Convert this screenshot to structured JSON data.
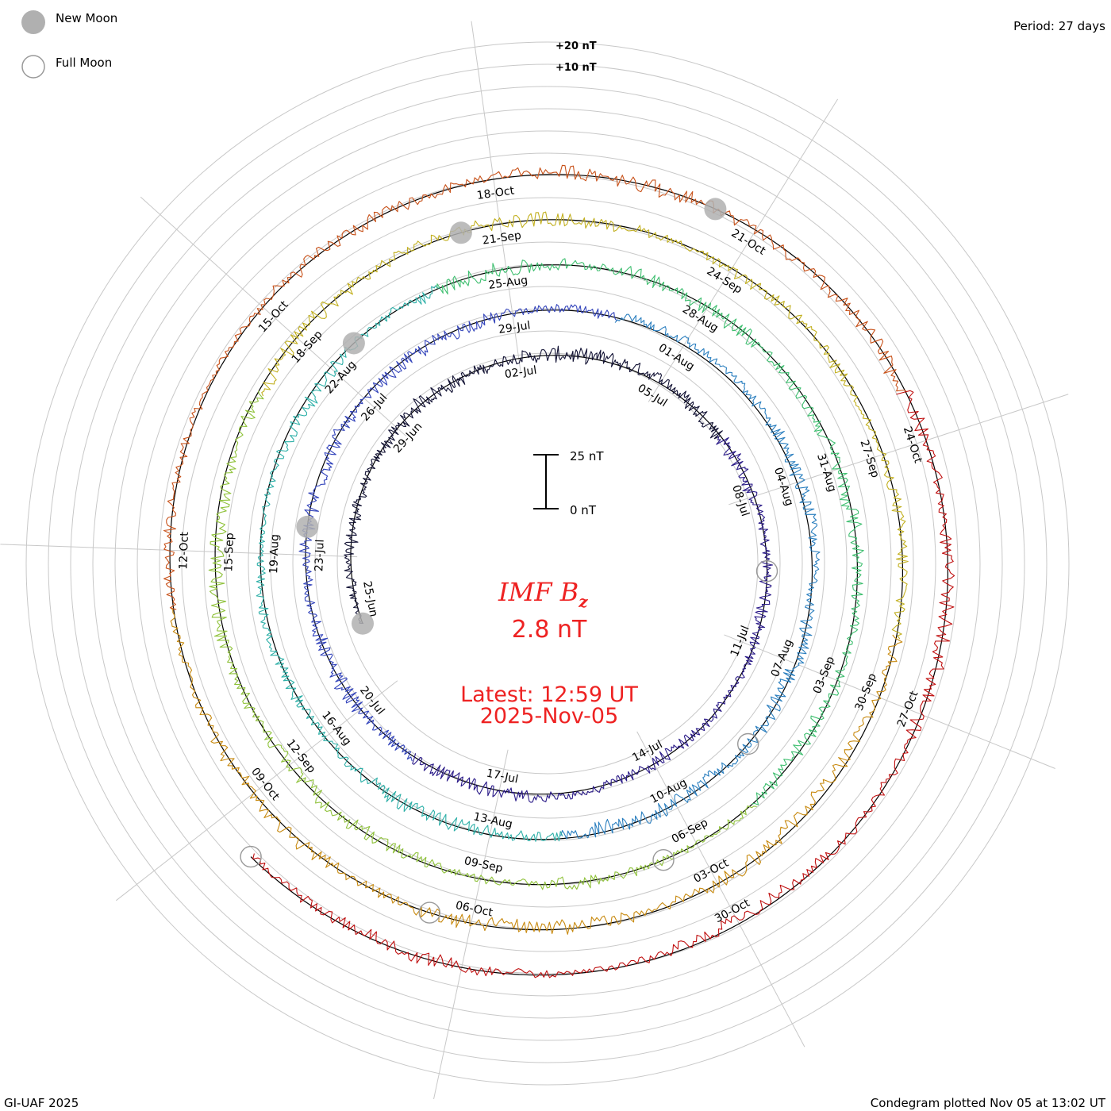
{
  "legend": {
    "new_moon": "New Moon",
    "full_moon": "Full Moon",
    "new_moon_color": "#b0b0b0",
    "full_moon_color": "#999999"
  },
  "period_label": "Period: 27 days",
  "footer_left": "GI-UAF 2025",
  "footer_right": "Condegram plotted Nov 05 at 13:02 UT",
  "scale_bar": {
    "top_label": "25 nT",
    "bottom_label": "0 nT"
  },
  "ring_labels": {
    "plus20": "+20 nT",
    "plus10": "+10 nT"
  },
  "center": {
    "title_main": "IMF B",
    "title_sub": "z",
    "value": "2.8 nT",
    "latest_line1": "Latest: 12:59 UT",
    "latest_line2": "2025-Nov-05"
  },
  "chart_data": {
    "type": "line",
    "title": "IMF Bz",
    "layout": "spiral condegram",
    "period_days": 27,
    "start_date": "2025-06-25",
    "end_date": "2025-11-05",
    "unit": "nT",
    "series_colors": [
      "#111133",
      "#2a1a88",
      "#3344bb",
      "#2b7fbf",
      "#2eb0a8",
      "#3fbf70",
      "#8fc23a",
      "#c2b020",
      "#c88a10",
      "#c8521a",
      "#c01010"
    ],
    "date_labels": [
      "25-Jun",
      "29-Jun",
      "02-Jul",
      "05-Jul",
      "08-Jul",
      "11-Jul",
      "14-Jul",
      "17-Jul",
      "20-Jul",
      "23-Jul",
      "26-Jul",
      "29-Jul",
      "01-Aug",
      "04-Aug",
      "07-Aug",
      "10-Aug",
      "13-Aug",
      "16-Aug",
      "19-Aug",
      "22-Aug",
      "25-Aug",
      "28-Aug",
      "31-Aug",
      "03-Sep",
      "06-Sep",
      "09-Sep",
      "12-Sep",
      "15-Sep",
      "18-Sep",
      "21-Sep",
      "24-Sep",
      "27-Sep",
      "30-Sep",
      "03-Oct",
      "06-Oct",
      "09-Oct",
      "12-Oct",
      "15-Oct",
      "18-Oct",
      "21-Oct",
      "24-Oct",
      "27-Oct",
      "30-Oct"
    ],
    "new_moon_dates": [
      "2025-06-25",
      "2025-07-24",
      "2025-08-23",
      "2025-09-21",
      "2025-10-21"
    ],
    "full_moon_dates": [
      "2025-07-10",
      "2025-08-09",
      "2025-09-07",
      "2025-10-07",
      "2025-11-05"
    ],
    "latest_value": 2.8
  }
}
